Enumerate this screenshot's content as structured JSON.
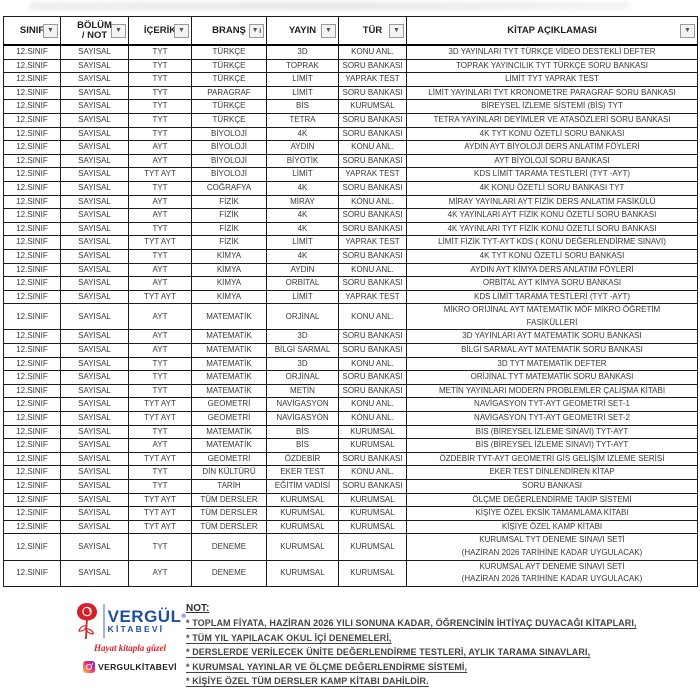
{
  "table": {
    "columns": [
      {
        "label": "SINIF",
        "slug": "sinif",
        "sorted": false
      },
      {
        "label": "BÖLÜM\n/ NOT",
        "slug": "bolum-not",
        "sorted": false
      },
      {
        "label": "İÇERİK",
        "slug": "icerik",
        "sorted": false
      },
      {
        "label": "BRANŞ",
        "slug": "brans",
        "sorted": true
      },
      {
        "label": "YAYIN",
        "slug": "yayin",
        "sorted": false
      },
      {
        "label": "TÜR",
        "slug": "tur",
        "sorted": false
      },
      {
        "label": "KİTAP AÇIKLAMASI",
        "slug": "kitap-aciklamasi",
        "sorted": false
      }
    ],
    "rows": [
      [
        "12.SINIF",
        "SAYISAL",
        "TYT",
        "TÜRKÇE",
        "3D",
        "KONU ANL.",
        "3D YAYINLARI TYT TÜRKÇE VİDEO DESTEKLİ DEFTER"
      ],
      [
        "12.SINIF",
        "SAYISAL",
        "TYT",
        "TÜRKÇE",
        "TOPRAK",
        "SORU BANKASI",
        "TOPRAK YAYINCILIK TYT TÜRKÇE SORU BANKASI"
      ],
      [
        "12.SINIF",
        "SAYISAL",
        "TYT",
        "TÜRKÇE",
        "LİMİT",
        "YAPRAK TEST",
        "LİMİT TYT YAPRAK TEST"
      ],
      [
        "12.SINIF",
        "SAYISAL",
        "TYT",
        "PARAGRAF",
        "LİMİT",
        "SORU BANKASI",
        "LİMİT YAYINLARI TYT KRONOMETRE PARAGRAF SORU BANKASI"
      ],
      [
        "12.SINIF",
        "SAYISAL",
        "TYT",
        "TÜRKÇE",
        "BİS",
        "KURUMSAL",
        "BİREYSEL İZLEME SİSTEMİ (BİS) TYT"
      ],
      [
        "12.SINIF",
        "SAYISAL",
        "TYT",
        "TÜRKÇE",
        "TETRA",
        "SORU BANKASI",
        "TETRA YAYINLARI DEYİMLER VE ATASÖZLERİ SORU BANKASI"
      ],
      [
        "12.SINIF",
        "SAYISAL",
        "TYT",
        "BİYOLOJİ",
        "4K",
        "SORU BANKASI",
        "4K TYT KONU ÖZETLİ SORU BANKASI"
      ],
      [
        "12.SINIF",
        "SAYISAL",
        "AYT",
        "BİYOLOJİ",
        "AYDIN",
        "KONU ANL.",
        "AYDIN AYT BİYOLOJİ DERS ANLATIM FÖYLERİ"
      ],
      [
        "12.SINIF",
        "SAYISAL",
        "AYT",
        "BİYOLOJİ",
        "BİYOTİK",
        "SORU BANKASI",
        "AYT BİYOLOJİ SORU BANKASI"
      ],
      [
        "12.SINIF",
        "SAYISAL",
        "TYT AYT",
        "BİYOLOJİ",
        "LİMİT",
        "YAPRAK TEST",
        "KDS LİMİT TARAMA TESTLERİ (TYT -AYT)"
      ],
      [
        "12.SINIF",
        "SAYISAL",
        "TYT",
        "COĞRAFYA",
        "4K",
        "SORU BANKASI",
        "4K KONU ÖZETLİ SORU BANKASI TYT"
      ],
      [
        "12.SINIF",
        "SAYISAL",
        "AYT",
        "FİZİK",
        "MİRAY",
        "KONU ANL.",
        "MİRAY YAYINLARI AYT FİZİK DERS ANLATIM FASİKÜLÜ"
      ],
      [
        "12.SINIF",
        "SAYISAL",
        "AYT",
        "FİZİK",
        "4K",
        "SORU BANKASI",
        "4K YAYINLARI AYT FİZİK KONU ÖZETLİ SORU BANKASI"
      ],
      [
        "12.SINIF",
        "SAYISAL",
        "TYT",
        "FİZİK",
        "4K",
        "SORU BANKASI",
        "4K YAYINLARI TYT FİZİK KONU ÖZETLİ SORU BANKASI"
      ],
      [
        "12.SINIF",
        "SAYISAL",
        "TYT AYT",
        "FİZİK",
        "LİMİT",
        "YAPRAK TEST",
        "LİMİT FİZİK TYT-AYT KDS ( KONU DEĞERLENDİRME SINAVI)"
      ],
      [
        "12.SINIF",
        "SAYISAL",
        "TYT",
        "KİMYA",
        "4K",
        "SORU BANKASI",
        "4K TYT KONU ÖZETLİ SORU BANKASI"
      ],
      [
        "12.SINIF",
        "SAYISAL",
        "AYT",
        "KİMYA",
        "AYDIN",
        "KONU ANL.",
        "AYDIN AYT KİMYA DERS ANLATIM FÖYLERİ"
      ],
      [
        "12.SINIF",
        "SAYISAL",
        "AYT",
        "KİMYA",
        "ORBİTAL",
        "SORU BANKASI",
        "ORBİTAL AYT KİMYA SORU BANKASI"
      ],
      [
        "12.SINIF",
        "SAYISAL",
        "TYT AYT",
        "KİMYA",
        "LİMİT",
        "YAPRAK TEST",
        "KDS LİMİT TARAMA TESTLERİ (TYT -AYT)"
      ],
      [
        "12.SINIF",
        "SAYISAL",
        "AYT",
        "MATEMATİK",
        "ORJİNAL",
        "KONU ANL.",
        "MİKRO ORİJİNAL AYT MATEMATİK MÖF MİKRO ÖĞRETİM\nFASİKÜLLERİ"
      ],
      [
        "12.SINIF",
        "SAYISAL",
        "AYT",
        "MATEMATİK",
        "3D",
        "SORU BANKASI",
        "3D YAYINLARI AYT MATEMATİK SORU BANKASI"
      ],
      [
        "12.SINIF",
        "SAYISAL",
        "AYT",
        "MATEMATİK",
        "BİLGİ SARMAL",
        "SORU BANKASI",
        "BİLGİ SARMAL AYT MATEMATİK SORU BANKASI"
      ],
      [
        "12.SINIF",
        "SAYISAL",
        "TYT",
        "MATEMATİK",
        "3D",
        "KONU ANL.",
        "3D TYT MATEMATİK DEFTER"
      ],
      [
        "12.SINIF",
        "SAYISAL",
        "TYT",
        "MATEMATİK",
        "ORJİNAL",
        "SORU BANKASI",
        "ORİJİNAL TYT MATEMATİK SORU BANKASI"
      ],
      [
        "12.SINIF",
        "SAYISAL",
        "TYT",
        "MATEMATİK",
        "METİN",
        "SORU BANKASI",
        "METİN YAYINLARI MODERN PROBLEMLER ÇALIŞMA KİTABI"
      ],
      [
        "12.SINIF",
        "SAYISAL",
        "TYT AYT",
        "GEOMETRİ",
        "NAVİGASYON",
        "KONU ANL.",
        "NAVİGASYON TYT-AYT GEOMETRİ SET-1"
      ],
      [
        "12.SINIF",
        "SAYISAL",
        "TYT AYT",
        "GEOMETRİ",
        "NAVİGASYON",
        "KONU ANL.",
        "NAVİGASYON TYT-AYT GEOMETRİ SET-2"
      ],
      [
        "12.SINIF",
        "SAYISAL",
        "TYT",
        "MATEMATİK",
        "BİS",
        "KURUMSAL",
        "BİS (BİREYSEL İZLEME SINAVI) TYT-AYT"
      ],
      [
        "12.SINIF",
        "SAYISAL",
        "AYT",
        "MATEMATİK",
        "BİS",
        "KURUMSAL",
        "BİS (BİREYSEL İZLEME SINAVI) TYT-AYT"
      ],
      [
        "12.SINIF",
        "SAYISAL",
        "TYT AYT",
        "GEOMETRİ",
        "ÖZDEBİR",
        "SORU BANKASI",
        "ÖZDEBİR TYT-AYT GEOMETRİ GİS GELİŞİM İZLEME SERİSİ"
      ],
      [
        "12.SINIF",
        "SAYISAL",
        "TYT",
        "DİN KÜLTÜRÜ",
        "EKER TEST",
        "KONU ANL.",
        "EKER TEST DİNLENDİREN KİTAP"
      ],
      [
        "12.SINIF",
        "SAYISAL",
        "TYT",
        "TARİH",
        "EĞİTİM VADİSİ",
        "SORU BANKASI",
        "SORU BANKASI"
      ],
      [
        "12.SINIF",
        "SAYISAL",
        "TYT AYT",
        "TÜM DERSLER",
        "KURUMSAL",
        "KURUMSAL",
        "ÖLÇME DEĞERLENDİRME TAKİP SİSTEMİ"
      ],
      [
        "12.SINIF",
        "SAYISAL",
        "TYT AYT",
        "TÜM DERSLER",
        "KURUMSAL",
        "KURUMSAL",
        "KİŞİYE ÖZEL EKSİK TAMAMLAMA KİTABI"
      ],
      [
        "12.SINIF",
        "SAYISAL",
        "TYT AYT",
        "TÜM DERSLER",
        "KURUMSAL",
        "KURUMSAL",
        "KİŞİYE ÖZEL KAMP KİTABI"
      ],
      [
        "12.SINIF",
        "SAYISAL",
        "TYT",
        "DENEME",
        "KURUMSAL",
        "KURUMSAL",
        "KURUMSAL TYT DENEME SINAVI SETİ\n(HAZİRAN 2026 TARİHİNE KADAR UYGULACAK)"
      ],
      [
        "12.SINIF",
        "SAYISAL",
        "AYT",
        "DENEME",
        "KURUMSAL",
        "KURUMSAL",
        "KURUMSAL AYT DENEME SINAVI SETİ\n(HAZİRAN 2026 TARİHİNE KADAR UYGULACAK)"
      ]
    ]
  },
  "footer": {
    "logo": {
      "brand": "VERGÜL",
      "registered": "®",
      "sub": "KİTABEVİ",
      "tagline": "Hayat kitapla güzel",
      "instagram_handle": "VERGULKİTABEVİ",
      "brand_color": "#1f4fa3",
      "accent_red": "#d6202a"
    },
    "notes": {
      "title": "NOT:",
      "items": [
        "*  TOPLAM FİYATA, HAZİRAN 2026 YILI SONUNA KADAR, ÖĞRENCİNİN İHTİYAÇ DUYACAĞI KİTAPLARI,",
        "*  TÜM YIL YAPILACAK OKUL İÇİ DENEMELERİ,",
        "*  DERSLERDE VERİLECEK ÜNİTE DEĞERLENDİRME TESTLERİ, AYLIK TARAMA SINAVLARI,",
        "*  KURUMSAL YAYINLAR VE ÖLÇME DEĞERLENDİRME SİSTEMİ,",
        "*  KİŞİYE ÖZEL TÜM DERSLER KAMP KİTABI DAHİLDİR."
      ]
    }
  }
}
